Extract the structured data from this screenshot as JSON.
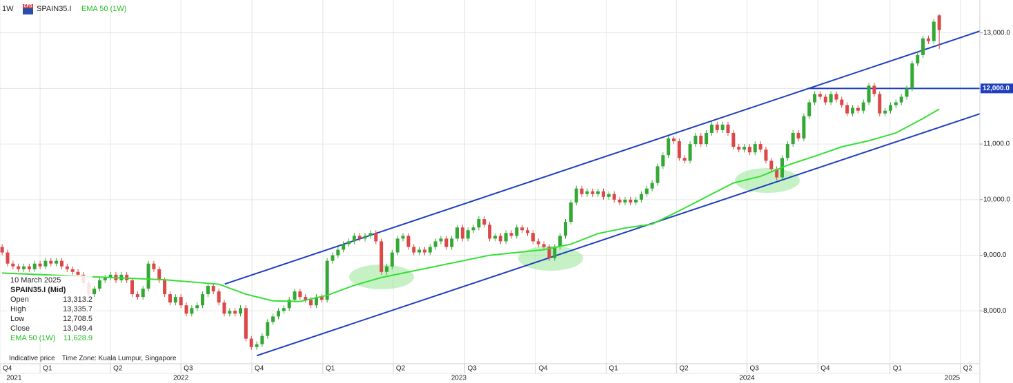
{
  "chart_data": {
    "type": "candlestick",
    "header": {
      "timeframe": "1W",
      "icon": "CFD",
      "symbol": "SPAIN35.I"
    },
    "up_color": "#34a835",
    "down_color": "#dc4848",
    "open": [
      9150,
      9050,
      8850,
      8800,
      8750,
      8800,
      8750,
      8850,
      8800,
      8900,
      8850,
      8900,
      8800,
      8750,
      8700,
      8650,
      8500,
      8300,
      8400,
      8550,
      8600,
      8650,
      8550,
      8650,
      8550,
      8300,
      8250,
      8400,
      8850,
      8750,
      8550,
      8300,
      8150,
      8250,
      8100,
      7950,
      8050,
      8100,
      8300,
      8450,
      8350,
      8150,
      7950,
      8000,
      7950,
      8050,
      7500,
      7350,
      7400,
      7550,
      7800,
      7900,
      8000,
      8050,
      8200,
      8350,
      8250,
      8200,
      8100,
      8250,
      8200,
      8900,
      9000,
      9100,
      9200,
      9250,
      9350,
      9300,
      9350,
      9400,
      9250,
      8700,
      8800,
      9050,
      9300,
      9350,
      9150,
      9050,
      9100,
      9050,
      9150,
      9250,
      9300,
      9150,
      9300,
      9500,
      9300,
      9450,
      9500,
      9650,
      9550,
      9300,
      9350,
      9250,
      9400,
      9350,
      9500,
      9450,
      9400,
      9250,
      9200,
      9150,
      8950,
      9150,
      9350,
      9600,
      9950,
      10200,
      10100,
      10150,
      10100,
      10150,
      10050,
      10100,
      10000,
      9950,
      10000,
      9950,
      10000,
      10100,
      10200,
      10300,
      10600,
      10800,
      11100,
      11050,
      10750,
      10700,
      11000,
      11150,
      11000,
      11200,
      11350,
      11250,
      11350,
      11200,
      10950,
      10900,
      10950,
      10850,
      11000,
      10900,
      10700,
      10550,
      10400,
      10750,
      11000,
      11200,
      11100,
      11500,
      11750,
      11900,
      11850,
      11750,
      11900,
      11800,
      11700,
      11550,
      11650,
      11600,
      11750,
      12050,
      11900,
      11550,
      11600,
      11700,
      11750,
      11850,
      12000,
      12450,
      12600,
      12900,
      12850,
      13313.2
    ],
    "high": [
      9200,
      9100,
      8900,
      8850,
      8850,
      8850,
      8900,
      8900,
      8950,
      8950,
      8950,
      8950,
      8850,
      8800,
      8750,
      8700,
      8550,
      8450,
      8600,
      8650,
      8700,
      8700,
      8700,
      8700,
      8600,
      8350,
      8450,
      8900,
      8900,
      8800,
      8600,
      8350,
      8300,
      8300,
      8150,
      8100,
      8150,
      8350,
      8500,
      8500,
      8400,
      8200,
      8050,
      8050,
      8100,
      8100,
      7550,
      7450,
      7600,
      7850,
      7950,
      8050,
      8100,
      8250,
      8400,
      8400,
      8300,
      8250,
      8300,
      8300,
      8950,
      9050,
      9150,
      9250,
      9300,
      9400,
      9400,
      9400,
      9450,
      9450,
      9300,
      8850,
      9100,
      9350,
      9400,
      9400,
      9200,
      9150,
      9150,
      9200,
      9300,
      9350,
      9350,
      9350,
      9550,
      9550,
      9500,
      9550,
      9700,
      9700,
      9600,
      9400,
      9400,
      9450,
      9450,
      9550,
      9550,
      9500,
      9450,
      9300,
      9250,
      9200,
      9200,
      9400,
      9650,
      10000,
      10250,
      10250,
      10200,
      10200,
      10200,
      10200,
      10150,
      10150,
      10050,
      10050,
      10050,
      10050,
      10150,
      10250,
      10350,
      10650,
      10850,
      11150,
      11150,
      11100,
      10800,
      11050,
      11200,
      11200,
      11250,
      11400,
      11400,
      11400,
      11400,
      11250,
      11000,
      11000,
      11000,
      11050,
      11050,
      10950,
      10750,
      10600,
      10800,
      11050,
      11250,
      11250,
      11550,
      11800,
      11950,
      11950,
      11900,
      11950,
      11950,
      11850,
      11750,
      11700,
      11700,
      11800,
      12100,
      12100,
      11950,
      11650,
      11750,
      11800,
      11900,
      12050,
      12500,
      12650,
      12950,
      12950,
      13250,
      13335.7
    ],
    "low": [
      9000,
      8800,
      8750,
      8700,
      8700,
      8700,
      8700,
      8750,
      8750,
      8800,
      8800,
      8750,
      8700,
      8650,
      8600,
      8450,
      8250,
      8250,
      8350,
      8500,
      8550,
      8500,
      8500,
      8500,
      8250,
      8200,
      8200,
      8350,
      8700,
      8500,
      8250,
      8100,
      8100,
      8050,
      7900,
      7900,
      8000,
      8050,
      8250,
      8300,
      8100,
      7900,
      7900,
      7900,
      7900,
      7450,
      7300,
      7300,
      7350,
      7500,
      7750,
      7850,
      7950,
      8000,
      8150,
      8200,
      8150,
      8050,
      8050,
      8150,
      8150,
      8850,
      8950,
      9050,
      9150,
      9200,
      9250,
      9250,
      9300,
      9200,
      8650,
      8650,
      8750,
      9000,
      9250,
      9100,
      9000,
      9000,
      9000,
      9000,
      9100,
      9200,
      9100,
      9100,
      9250,
      9250,
      9250,
      9400,
      9450,
      9500,
      9250,
      9250,
      9200,
      9200,
      9300,
      9300,
      9400,
      9350,
      9200,
      9150,
      9100,
      8900,
      8900,
      9100,
      9300,
      9550,
      9900,
      10050,
      10050,
      10050,
      10050,
      10000,
      10000,
      9950,
      9900,
      9900,
      9900,
      9900,
      9950,
      10050,
      10150,
      10250,
      10550,
      10750,
      11000,
      10700,
      10650,
      10650,
      10950,
      10950,
      10950,
      11150,
      11200,
      11200,
      11150,
      10900,
      10850,
      10850,
      10800,
      10800,
      10850,
      10650,
      10500,
      10350,
      10350,
      10700,
      10950,
      11050,
      11050,
      11450,
      11700,
      11800,
      11700,
      11700,
      11750,
      11650,
      11500,
      11500,
      11550,
      11550,
      11700,
      11850,
      11500,
      11500,
      11550,
      11650,
      11700,
      11800,
      11950,
      12400,
      12550,
      12800,
      12800,
      12708.5
    ],
    "close": [
      9050,
      8850,
      8800,
      8750,
      8800,
      8750,
      8850,
      8800,
      8900,
      8850,
      8900,
      8800,
      8750,
      8700,
      8650,
      8500,
      8300,
      8400,
      8550,
      8600,
      8650,
      8550,
      8650,
      8550,
      8300,
      8250,
      8400,
      8850,
      8750,
      8550,
      8300,
      8150,
      8250,
      8100,
      7950,
      8050,
      8100,
      8300,
      8450,
      8350,
      8150,
      7950,
      8000,
      7950,
      8050,
      7500,
      7350,
      7400,
      7550,
      7800,
      7900,
      8000,
      8050,
      8200,
      8350,
      8250,
      8200,
      8100,
      8250,
      8200,
      8900,
      9000,
      9100,
      9200,
      9250,
      9350,
      9300,
      9350,
      9400,
      9250,
      8700,
      8800,
      9050,
      9300,
      9350,
      9150,
      9050,
      9100,
      9050,
      9150,
      9250,
      9300,
      9150,
      9300,
      9500,
      9300,
      9450,
      9500,
      9650,
      9550,
      9300,
      9350,
      9250,
      9400,
      9350,
      9500,
      9450,
      9400,
      9250,
      9200,
      9150,
      8950,
      9150,
      9350,
      9600,
      9950,
      10200,
      10100,
      10150,
      10100,
      10150,
      10050,
      10100,
      10000,
      9950,
      10000,
      9950,
      10000,
      10100,
      10200,
      10300,
      10600,
      10800,
      11100,
      11050,
      10750,
      10700,
      11000,
      11150,
      11000,
      11200,
      11350,
      11250,
      11350,
      11200,
      10950,
      10900,
      10950,
      10850,
      11000,
      10900,
      10700,
      10550,
      10400,
      10750,
      11000,
      11200,
      11100,
      11500,
      11750,
      11900,
      11850,
      11750,
      11900,
      11800,
      11700,
      11550,
      11650,
      11600,
      11750,
      12050,
      11900,
      11550,
      11600,
      11700,
      11750,
      11850,
      12000,
      12450,
      12600,
      12900,
      12850,
      13200,
      13049.4
    ],
    "ema": {
      "name": "EMA 50 (1W)",
      "color": "#33e033",
      "x": [
        0,
        10,
        20,
        30,
        40,
        45,
        50,
        55,
        60,
        65,
        70,
        80,
        90,
        100,
        105,
        110,
        115,
        120,
        125,
        130,
        135,
        140,
        145,
        150,
        155,
        160,
        165,
        170,
        173
      ],
      "values": [
        8680,
        8640,
        8600,
        8560,
        8480,
        8300,
        8180,
        8170,
        8280,
        8460,
        8600,
        8800,
        9000,
        9100,
        9200,
        9390,
        9490,
        9560,
        9800,
        10050,
        10300,
        10420,
        10620,
        10780,
        10950,
        11060,
        11200,
        11460,
        11628.9
      ]
    },
    "lines": [
      {
        "color": "#1f3fbf",
        "x": [
          41.1,
          180.5
        ],
        "values": [
          8483,
          13031
        ]
      },
      {
        "color": "#1f3fbf",
        "x": [
          47,
          180.5
        ],
        "values": [
          7195,
          11544
        ]
      }
    ],
    "level": {
      "color": "#1f3fbf",
      "x": [
        148.7,
        180.5
      ],
      "value": 12000,
      "label": "12,000.0"
    },
    "xlim": [
      -0.4,
      180.5
    ],
    "ylim": [
      7050,
      13590
    ],
    "grid": true,
    "yticks": [
      {
        "value": 8000,
        "label": "8,000.0"
      },
      {
        "value": 9000,
        "label": "9,000.0"
      },
      {
        "value": 10000,
        "label": "10,000.0"
      },
      {
        "value": 11000,
        "label": "11,000.0"
      },
      {
        "value": 12000,
        "label": "12,000.0"
      },
      {
        "value": 13000,
        "label": "13,000.0"
      }
    ],
    "xticks": [
      {
        "value": -0.4,
        "label": "Q4"
      },
      {
        "value": 7,
        "label": "Q1"
      },
      {
        "value": 20,
        "label": "Q2"
      },
      {
        "value": 33,
        "label": "Q3"
      },
      {
        "value": 46.1,
        "label": "Q4"
      },
      {
        "value": 59.2,
        "label": "Q1"
      },
      {
        "value": 72.2,
        "label": "Q2"
      },
      {
        "value": 85.4,
        "label": "Q3"
      },
      {
        "value": 98.5,
        "label": "Q4"
      },
      {
        "value": 111.5,
        "label": "Q1"
      },
      {
        "value": 124.5,
        "label": "Q2"
      },
      {
        "value": 137.5,
        "label": "Q3"
      },
      {
        "value": 150.6,
        "label": "Q4"
      },
      {
        "value": 163.9,
        "label": "Q1"
      },
      {
        "value": 176.9,
        "label": "Q2"
      }
    ],
    "year_ticks": [
      {
        "value": 2.2,
        "label": "2021"
      },
      {
        "value": 33,
        "label": "2022"
      },
      {
        "value": 84.3,
        "label": "2023"
      },
      {
        "value": 137.5,
        "label": "2024"
      },
      {
        "value": 175.4,
        "label": "2025"
      }
    ],
    "tooltip": {
      "date": "10 March 2025",
      "instrument": "SPAIN35.I (Mid)",
      "rows": [
        {
          "label": "Open",
          "value": "13,313.2"
        },
        {
          "label": "High",
          "value": "13,335.7"
        },
        {
          "label": "Low",
          "value": "12,708.5"
        },
        {
          "label": "Close",
          "value": "13,049.4"
        }
      ],
      "ema_value": "11,628.9",
      "note": "Indicative price",
      "timezone": "Time Zone: Kuala Lumpur, Singapore"
    }
  }
}
